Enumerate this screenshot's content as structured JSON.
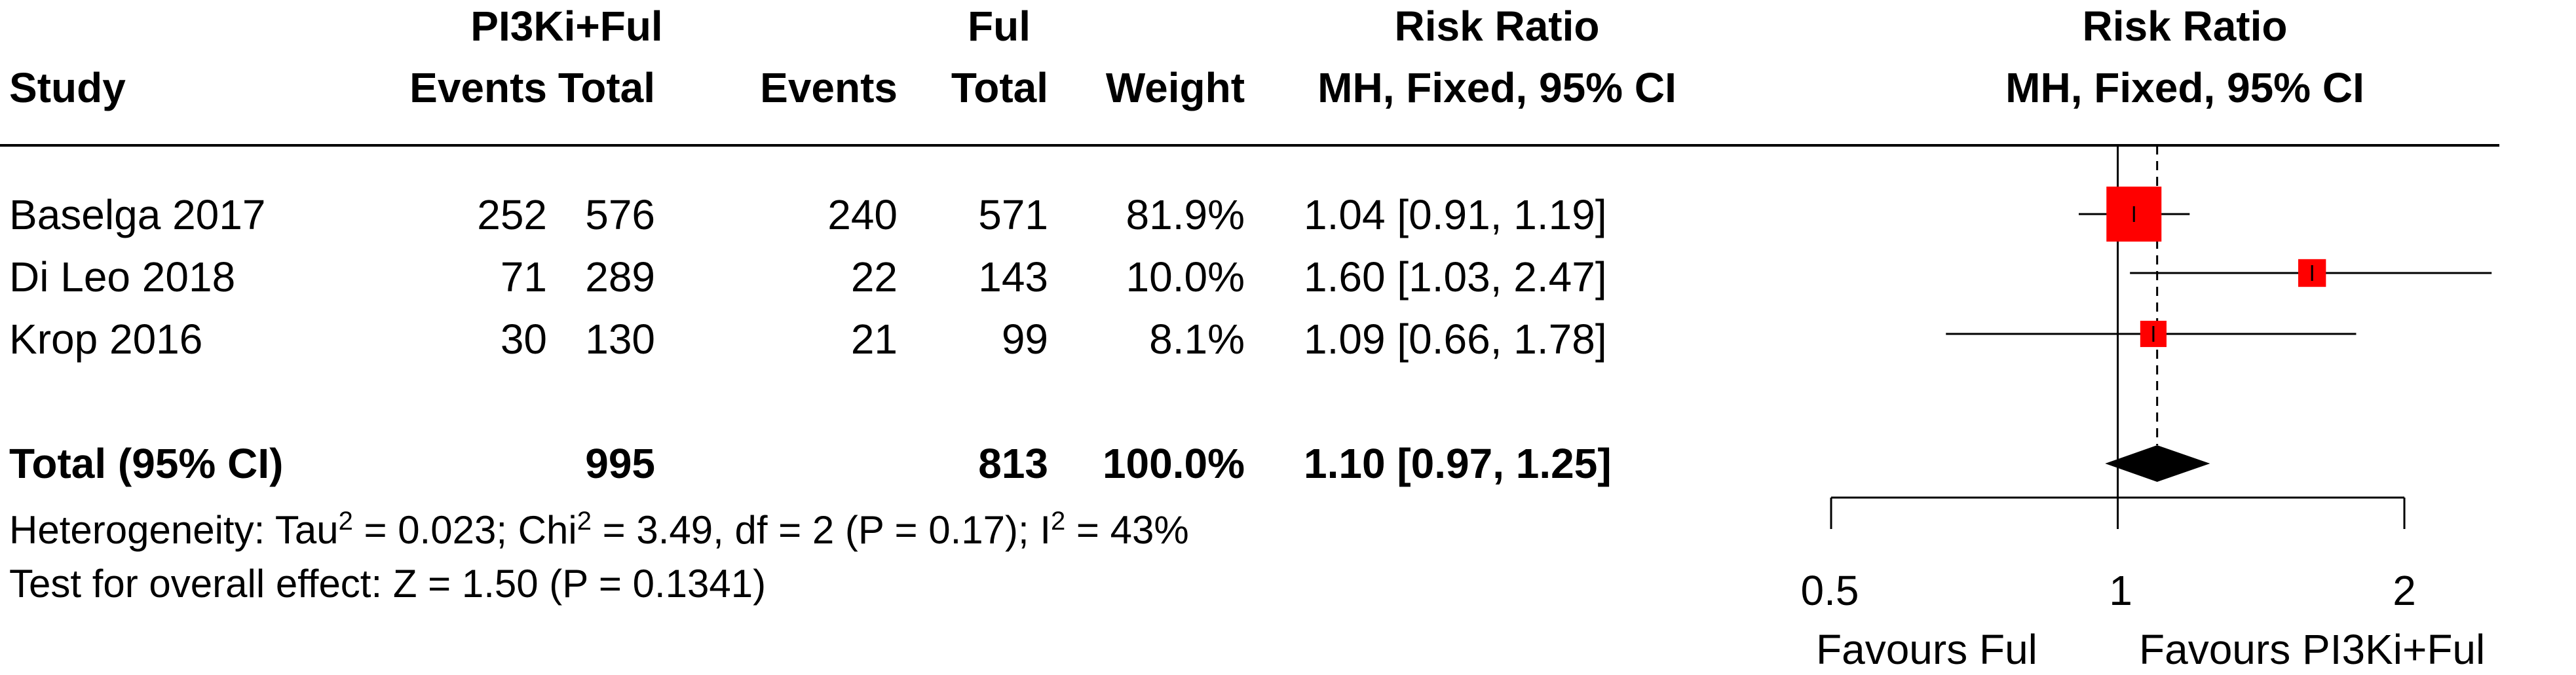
{
  "header": {
    "exp_group": "PI3Ki+Ful",
    "ctl_group": "Ful",
    "rr_col": "Risk Ratio",
    "rr_method": "MH, Fixed, 95% CI",
    "plot_title": "Risk Ratio",
    "plot_method": "MH, Fixed, 95% CI",
    "study": "Study",
    "events": "Events",
    "total": "Total",
    "weight": "Weight"
  },
  "studies": [
    {
      "name": "Baselga 2017",
      "exp_events": "252",
      "exp_total": "576",
      "ctl_events": "240",
      "ctl_total": "571",
      "weight": "81.9%",
      "ci_text": "1.04 [0.91, 1.19]"
    },
    {
      "name": "Di Leo 2018",
      "exp_events": "71",
      "exp_total": "289",
      "ctl_events": "22",
      "ctl_total": "143",
      "weight": "10.0%",
      "ci_text": "1.60 [1.03, 2.47]"
    },
    {
      "name": "Krop 2016",
      "exp_events": "30",
      "exp_total": "130",
      "ctl_events": "21",
      "ctl_total": "99",
      "weight": "8.1%",
      "ci_text": "1.09 [0.66, 1.78]"
    }
  ],
  "total": {
    "label": "Total (95% CI)",
    "exp_total": "995",
    "ctl_total": "813",
    "weight": "100.0%",
    "ci_text": "1.10 [0.97, 1.25]"
  },
  "heterogeneity": {
    "prefix": "Heterogeneity: Tau",
    "sup1": "2",
    "mid1": " = 0.023; Chi",
    "sup2": "2",
    "mid2": " = 3.49, df = 2 (P = 0.17); I",
    "sup3": "2",
    "suffix": " = 43%"
  },
  "overall_effect": "Test for overall effect: Z = 1.50 (P = 0.1341)",
  "axis": {
    "ticks": [
      "0.5",
      "1",
      "2"
    ],
    "favours_left": "Favours Ful",
    "favours_right": "Favours PI3Ki+Ful"
  },
  "chart_data": {
    "type": "forest",
    "scale": "log",
    "xlim": [
      0.5,
      2
    ],
    "null_value": 1,
    "pooled_estimate": 1.1,
    "marker_color": "#ff0000",
    "series": [
      {
        "name": "Baselga 2017",
        "rr": 1.04,
        "lower": 0.91,
        "upper": 1.19,
        "weight": 81.9
      },
      {
        "name": "Di Leo 2018",
        "rr": 1.6,
        "lower": 1.03,
        "upper": 2.47,
        "weight": 10.0
      },
      {
        "name": "Krop 2016",
        "rr": 1.09,
        "lower": 0.66,
        "upper": 1.78,
        "weight": 8.1
      }
    ],
    "total": {
      "rr": 1.1,
      "lower": 0.97,
      "upper": 1.25
    }
  }
}
